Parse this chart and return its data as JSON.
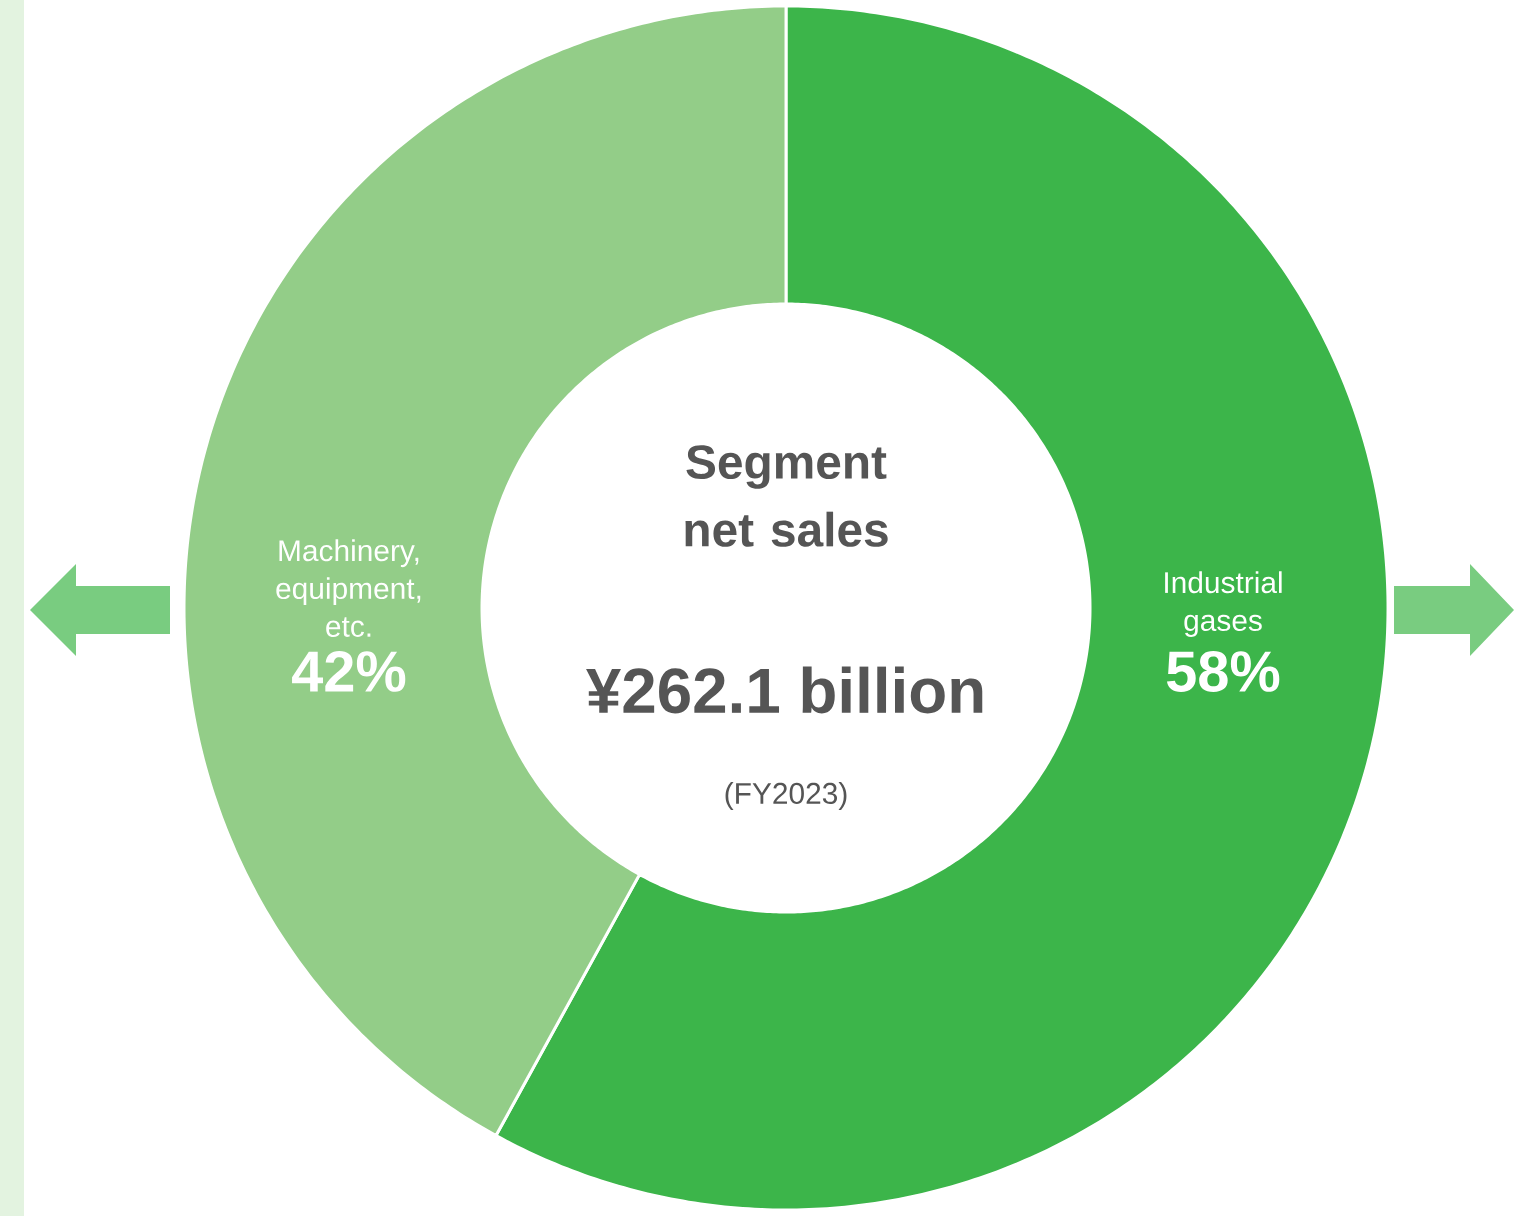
{
  "chart_data": {
    "type": "donut",
    "title": "Segment net sales",
    "subtitle": "¥262.1 billion",
    "annotations": [
      "(FY2023)"
    ],
    "categories": [
      "Industrial gases",
      "Machinery, equipment, etc."
    ],
    "values": [
      58,
      42
    ],
    "value_labels": [
      "58%",
      "42%"
    ],
    "colors": [
      "#3cb54a",
      "#93cd88"
    ]
  }
}
